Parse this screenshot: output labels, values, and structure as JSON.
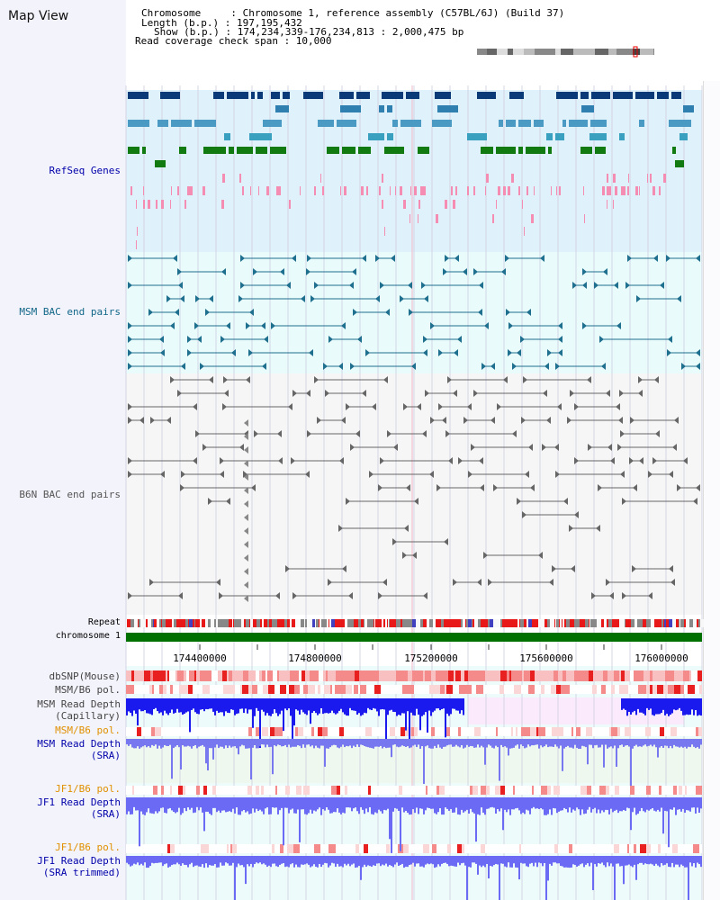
{
  "view": {
    "title": "Map View",
    "info_lines": [
      "Chromosome     : Chromosome 1, reference assembly (C57BL/6J) (Build 37)",
      "Length (b.p.) : 197,195,432",
      "Show (b.p.) : 174,234,339-176,234,813 : 2,000,475 bp",
      "Read coverage check span : 10,000"
    ]
  },
  "tracks": {
    "refseq": {
      "label": "RefSeq Genes",
      "color": "#0000aa"
    },
    "msm_bac": {
      "label": "MSM BAC end pairs",
      "color": "#116688"
    },
    "b6n_bac": {
      "label": "B6N BAC end pairs",
      "color": "#555555"
    },
    "repeat": {
      "label": "Repeat"
    },
    "chromosome": {
      "label": "chromosome 1",
      "color": "#006600"
    },
    "dbsnp": {
      "label": "dbSNP(Mouse)"
    },
    "msm_b6_pol_1": {
      "label": "MSM/B6 pol."
    },
    "msm_depth_cap": {
      "label_line1": "MSM Read Depth",
      "label_line2": "(Capillary)"
    },
    "msm_b6_pol_2": {
      "label": "MSM/B6 pol.",
      "color": "#e09000"
    },
    "msm_depth_sra": {
      "label_line1": "MSM Read Depth",
      "label_line2": "(SRA)",
      "color": "#0000aa"
    },
    "jf1_b6_pol_1": {
      "label": "JF1/B6 pol.",
      "color": "#e09000"
    },
    "jf1_depth_sra": {
      "label_line1": "JF1 Read Depth",
      "label_line2": "(SRA)",
      "color": "#0000aa"
    },
    "jf1_b6_pol_2": {
      "label": "JF1/B6 pol.",
      "color": "#e09000"
    },
    "jf1_depth_trim": {
      "label_line1": "JF1 Read Depth",
      "label_line2": "(SRA trimmed)",
      "color": "#0000aa"
    }
  },
  "axis": {
    "ticks": [
      "174400000",
      "174800000",
      "175200000",
      "175600000",
      "176000000"
    ]
  }
}
